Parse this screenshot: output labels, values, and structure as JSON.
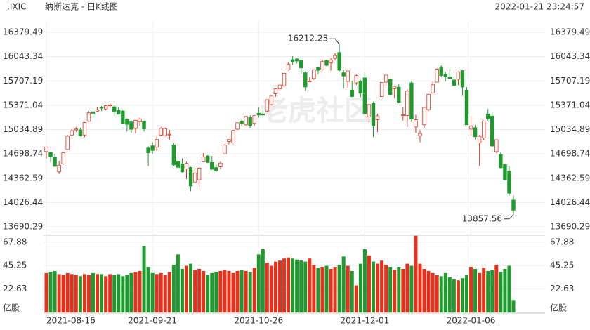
{
  "chart_data": {
    "type": "candlestick",
    "symbol": ".IXIC",
    "title": "纳斯达克 - 日K线图",
    "timestamp": "2022-01-21 23:24:57",
    "watermark": "老虎社区",
    "categories": [
      "2021-08-16",
      null,
      null,
      null,
      null,
      null,
      null,
      null,
      null,
      null,
      null,
      null,
      null,
      null,
      null,
      null,
      null,
      null,
      null,
      null,
      null,
      null,
      null,
      null,
      null,
      "2021-09-21",
      null,
      null,
      null,
      null,
      null,
      null,
      null,
      null,
      null,
      null,
      null,
      null,
      null,
      null,
      null,
      null,
      null,
      null,
      null,
      null,
      null,
      null,
      null,
      null,
      "2021-10-26",
      null,
      null,
      null,
      null,
      null,
      null,
      null,
      null,
      null,
      null,
      null,
      null,
      null,
      null,
      null,
      null,
      null,
      null,
      null,
      null,
      null,
      null,
      null,
      null,
      "2021-12-01",
      null,
      null,
      null,
      null,
      null,
      null,
      null,
      null,
      null,
      null,
      null,
      null,
      null,
      null,
      null,
      null,
      null,
      null,
      null,
      null,
      null,
      null,
      null,
      null,
      "2022-01-06",
      null,
      null,
      null,
      null,
      null,
      null,
      null,
      null,
      null,
      null
    ],
    "open": [
      14730,
      14720,
      14650,
      14450,
      14560,
      14760,
      14960,
      15030,
      15030,
      14960,
      15150,
      15280,
      15290,
      15340,
      15320,
      15370,
      15350,
      15300,
      15290,
      15180,
      15140,
      15050,
      15140,
      15150,
      14780,
      14810,
      14790,
      14960,
      14950,
      14960,
      14820,
      14590,
      14560,
      14490,
      14510,
      14310,
      14340,
      14590,
      14670,
      14580,
      14510,
      14520,
      14700,
      14870,
      14850,
      15040,
      15150,
      15100,
      15200,
      15120,
      15260,
      15250,
      15290,
      15380,
      15530,
      15600,
      15640,
      15860,
      16000,
      16010,
      15990,
      15820,
      15700,
      15740,
      15890,
      15860,
      15990,
      15960,
      16020,
      16100,
      15820,
      15700,
      15580,
      15680,
      15700,
      15750,
      15210,
      15400,
      15170,
      15490,
      15690,
      15730,
      15600,
      15620,
      15230,
      15230,
      15680,
      15070,
      14950,
      15100,
      15310,
      15540,
      15690,
      15900,
      15800,
      15760,
      15720,
      15730,
      15850,
      15580,
      15040,
      15060,
      14850,
      14920,
      15250,
      15220,
      14730,
      14690,
      14550,
      14460,
      14060
    ],
    "high": [
      14800,
      14730,
      14700,
      14600,
      14730,
      14960,
      15040,
      15070,
      15060,
      15140,
      15290,
      15290,
      15350,
      15360,
      15380,
      15400,
      15370,
      15350,
      15310,
      15190,
      15160,
      15170,
      15200,
      15160,
      14800,
      14860,
      14940,
      15070,
      15060,
      15030,
      14850,
      14650,
      14640,
      14590,
      14520,
      14510,
      14510,
      14710,
      14680,
      14670,
      14560,
      14590,
      14830,
      14900,
      15030,
      15130,
      15170,
      15220,
      15230,
      15230,
      15340,
      15300,
      15450,
      15500,
      15600,
      15660,
      15830,
      15960,
      16050,
      16020,
      16000,
      15840,
      15760,
      15870,
      15900,
      16000,
      16000,
      16020,
      16090,
      16212.23,
      15860,
      15850,
      15710,
      15800,
      15720,
      15820,
      15410,
      15420,
      15250,
      15690,
      15790,
      15740,
      15640,
      15660,
      15350,
      15590,
      15700,
      15240,
      15030,
      15350,
      15530,
      15700,
      15880,
      15920,
      15830,
      15870,
      15770,
      15840,
      15860,
      15620,
      15220,
      15100,
      14960,
      15160,
      15320,
      15270,
      14900,
      14720,
      14560,
      14530,
      14120
    ],
    "low": [
      14635,
      14580,
      14520,
      14420,
      14550,
      14755,
      14950,
      15000,
      14940,
      14930,
      15140,
      15200,
      15280,
      15290,
      15300,
      15340,
      15220,
      15240,
      15110,
      15010,
      14990,
      14980,
      15090,
      15010,
      14530,
      14700,
      14740,
      14950,
      14940,
      14890,
      14530,
      14480,
      14440,
      14350,
      14180,
      14290,
      14240,
      14590,
      14570,
      14480,
      14450,
      14490,
      14700,
      14830,
      14840,
      15030,
      15080,
      15090,
      15060,
      15090,
      15200,
      15230,
      15280,
      15370,
      15490,
      15570,
      15620,
      15850,
      15930,
      15950,
      15800,
      15570,
      15690,
      15720,
      15800,
      15850,
      15910,
      15850,
      15990,
      15840,
      15600,
      15610,
      15480,
      15650,
      15480,
      15250,
      15130,
      14930,
      15000,
      15490,
      15640,
      15510,
      15470,
      15400,
      15160,
      15070,
      15140,
      14990,
      14860,
      15060,
      15290,
      15540,
      15690,
      15760,
      15700,
      15740,
      15640,
      15650,
      15500,
      15100,
      14950,
      14900,
      14530,
      14890,
      15160,
      14790,
      14710,
      14500,
      14330,
      14120,
      13857.56
    ],
    "close": [
      14794,
      14656,
      14526,
      14542,
      14715,
      14943,
      15020,
      15042,
      14946,
      15130,
      15266,
      15259,
      15309,
      15331,
      15364,
      15374,
      15287,
      15248,
      15115,
      15106,
      15038,
      15162,
      15182,
      15044,
      14714,
      14746,
      14897,
      15052,
      15048,
      14970,
      14547,
      14512,
      14449,
      14567,
      14255,
      14434,
      14502,
      14654,
      14580,
      14486,
      14466,
      14572,
      14823,
      14897,
      15022,
      15129,
      15122,
      15216,
      15090,
      15227,
      15236,
      15236,
      15448,
      15498,
      15596,
      15650,
      15812,
      15940,
      15972,
      15982,
      15887,
      15623,
      15704,
      15861,
      15854,
      15974,
      15922,
      15994,
      16057,
      15855,
      15775,
      15845,
      15492,
      15783,
      15538,
      15254,
      15381,
      15085,
      15225,
      15687,
      15787,
      15517,
      15631,
      15413,
      15238,
      15566,
      15180,
      15170,
      14981,
      15341,
      15522,
      15653,
      15871,
      15782,
      15766,
      15742,
      15645,
      15833,
      15623,
      15100,
      15081,
      14936,
      14943,
      15153,
      15188,
      14807,
      14894,
      14507,
      14340,
      14154,
      13920
    ],
    "volume": [
      38,
      39,
      40,
      37,
      36,
      38,
      37,
      36,
      35,
      37,
      36,
      38,
      37,
      37,
      35,
      37,
      36,
      37,
      35,
      36,
      38,
      39,
      40,
      64,
      44,
      38,
      37,
      38,
      36,
      39,
      46,
      56,
      42,
      45,
      47,
      41,
      42,
      40,
      36,
      38,
      39,
      40,
      41,
      40,
      38,
      40,
      41,
      40,
      39,
      43,
      56,
      61,
      48,
      45,
      49,
      50,
      52,
      53,
      52,
      51,
      50,
      49,
      52,
      46,
      43,
      44,
      45,
      42,
      44,
      46,
      54,
      45,
      40,
      26,
      47,
      61,
      55,
      49,
      47,
      50,
      46,
      44,
      41,
      44,
      42,
      47,
      45,
      74,
      47,
      42,
      40,
      38,
      36,
      35,
      38,
      34,
      32,
      31,
      33,
      36,
      44,
      42,
      38,
      43,
      40,
      41,
      46,
      39,
      42,
      45,
      12
    ],
    "ylim": [
      13690.29,
      16379.49
    ],
    "yticks": [
      13690.29,
      14026.44,
      14362.59,
      14698.74,
      15034.89,
      15371.04,
      15707.19,
      16043.34,
      16379.49
    ],
    "volume_ylim": [
      0,
      74.5
    ],
    "volume_yticks": [
      {
        "value": 0,
        "label": "亿股"
      },
      22.63,
      45.25,
      67.88
    ],
    "up_color": "#e8311b",
    "down_color": "#1f9a2e",
    "grid": true
  }
}
